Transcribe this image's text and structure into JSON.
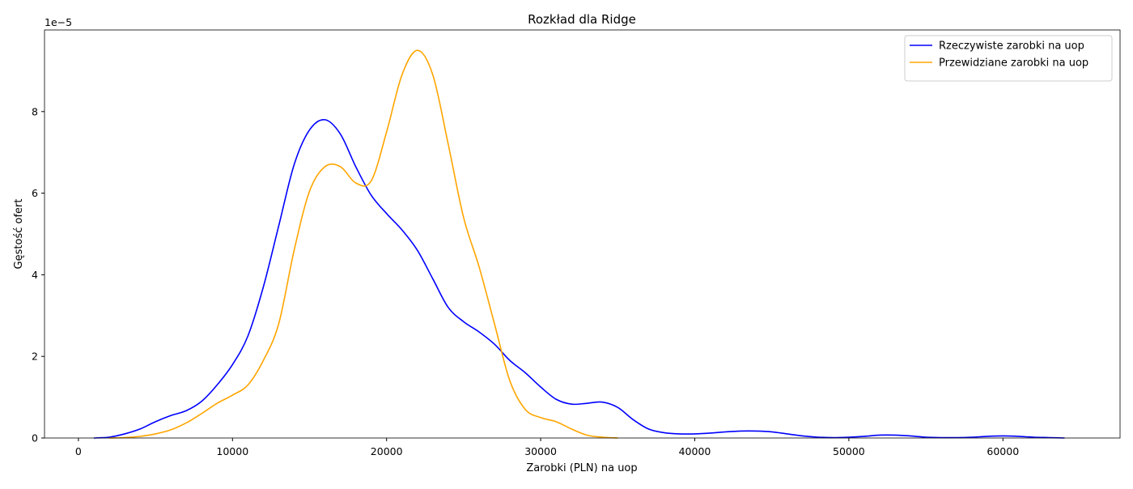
{
  "chart_data": {
    "type": "line",
    "title": "Rozkład dla Ridge",
    "x_label": "Zarobki (PLN) na uop",
    "y_label": "Gęstość ofert",
    "y_offset_label": "1e−5",
    "x": [
      1000,
      2000,
      3000,
      4000,
      5000,
      6000,
      7000,
      8000,
      9000,
      10000,
      11000,
      12000,
      13000,
      14000,
      15000,
      16000,
      17000,
      18000,
      19000,
      20000,
      21000,
      22000,
      23000,
      24000,
      25000,
      26000,
      27000,
      28000,
      29000,
      30000,
      31000,
      32000,
      33000,
      34000,
      35000,
      36000,
      37000,
      38000,
      39000,
      40000,
      41000,
      42000,
      43000,
      44000,
      45000,
      46000,
      47000,
      48000,
      49000,
      50000,
      51000,
      52000,
      53000,
      54000,
      55000,
      56000,
      57000,
      58000,
      59000,
      60000,
      61000,
      62000,
      63000,
      64000
    ],
    "series": [
      {
        "name": "Rzeczywiste zarobki na uop",
        "color": "#0000ff",
        "values": [
          0,
          0.02,
          0.1,
          0.22,
          0.4,
          0.55,
          0.67,
          0.9,
          1.3,
          1.8,
          2.5,
          3.7,
          5.2,
          6.7,
          7.55,
          7.8,
          7.45,
          6.65,
          5.95,
          5.5,
          5.1,
          4.6,
          3.9,
          3.2,
          2.85,
          2.6,
          2.3,
          1.9,
          1.6,
          1.25,
          0.95,
          0.83,
          0.85,
          0.88,
          0.75,
          0.45,
          0.22,
          0.13,
          0.1,
          0.1,
          0.12,
          0.15,
          0.17,
          0.17,
          0.15,
          0.1,
          0.05,
          0.02,
          0.01,
          0.02,
          0.04,
          0.07,
          0.07,
          0.05,
          0.02,
          0.01,
          0.01,
          0.02,
          0.04,
          0.05,
          0.04,
          0.02,
          0.01,
          0
        ]
      },
      {
        "name": "Przewidziane zarobki na uop",
        "color": "#ffa500",
        "values": [
          null,
          0,
          0.01,
          0.04,
          0.1,
          0.2,
          0.37,
          0.6,
          0.85,
          1.05,
          1.3,
          1.9,
          2.8,
          4.6,
          6.05,
          6.65,
          6.65,
          6.25,
          6.3,
          7.5,
          8.9,
          9.5,
          8.9,
          7.2,
          5.4,
          4.2,
          2.8,
          1.4,
          0.7,
          0.5,
          0.4,
          0.22,
          0.07,
          0.02,
          0,
          null,
          null,
          null,
          null,
          null,
          null,
          null,
          null,
          null,
          null,
          null,
          null,
          null,
          null,
          null,
          null,
          null,
          null,
          null,
          null,
          null,
          null,
          null,
          null,
          null,
          null,
          null,
          null,
          null
        ]
      }
    ],
    "xlim": [
      -2200,
      67600
    ],
    "xticks": [
      0,
      10000,
      20000,
      30000,
      40000,
      50000,
      60000
    ],
    "ylim": [
      0,
      10
    ],
    "yticks": [
      0,
      2,
      4,
      6,
      8
    ],
    "legend": "upper right",
    "grid": false
  }
}
